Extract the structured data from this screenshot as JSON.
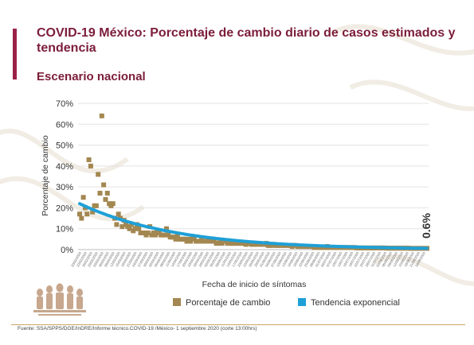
{
  "header": {
    "title": "COVID-19 México: Porcentaje de cambio diario de casos estimados y tendencia",
    "subtitle": "Escenario nacional"
  },
  "footer": {
    "source": "Fuente: SSA/SPPS/DGE/InDRE/Informe técnico.COVID-19 /México- 1 septiembre 2020 (corte 13:00hrs)"
  },
  "colors": {
    "title": "#7c1d3a",
    "accent_bar": "#9b2247",
    "scatter": "#a38750",
    "trend": "#1fa0d6"
  },
  "chart_data": {
    "type": "scatter",
    "xlabel": "Fecha de inicio de síntomas",
    "ylabel": "Porcentaje de cambio",
    "ylim": [
      0,
      70
    ],
    "yticks": [
      "0%",
      "10%",
      "20%",
      "30%",
      "40%",
      "50%",
      "60%",
      "70%"
    ],
    "grid": true,
    "legend_position": "bottom",
    "end_label": "0.6%",
    "x_tick_labels": [
      "20/02/2020",
      "23/02/2020",
      "26/02/2020",
      "29/02/2020",
      "03/03/2020",
      "06/03/2020",
      "09/03/2020",
      "12/03/2020",
      "15/03/2020",
      "18/03/2020",
      "21/03/2020",
      "24/03/2020",
      "27/03/2020",
      "30/03/2020",
      "02/04/2020",
      "05/04/2020",
      "08/04/2020",
      "11/04/2020",
      "14/04/2020",
      "17/04/2020",
      "20/04/2020",
      "23/04/2020",
      "26/04/2020",
      "29/04/2020",
      "02/05/2020",
      "05/05/2020",
      "08/05/2020",
      "11/05/2020",
      "14/05/2020",
      "17/05/2020",
      "20/05/2020",
      "23/05/2020",
      "26/05/2020",
      "29/05/2020",
      "01/06/2020",
      "04/06/2020",
      "07/06/2020",
      "10/06/2020",
      "13/06/2020",
      "16/06/2020",
      "19/06/2020",
      "22/06/2020",
      "25/06/2020",
      "28/06/2020",
      "01/07/2020",
      "04/07/2020",
      "07/07/2020",
      "10/07/2020",
      "13/07/2020",
      "16/07/2020",
      "19/07/2020",
      "22/07/2020",
      "25/07/2020",
      "28/07/2020",
      "31/07/2020",
      "03/08/2020",
      "06/08/2020",
      "09/08/2020",
      "12/08/2020",
      "15/08/2020",
      "18/08/2020",
      "21/08/2020",
      "24/08/2020"
    ],
    "series": [
      {
        "name": "Porcentaje de cambio",
        "kind": "scatter",
        "values": [
          17,
          15,
          25,
          20,
          17,
          43,
          40,
          18,
          21,
          21,
          36,
          27,
          64,
          31,
          24,
          27,
          22,
          21,
          22,
          15,
          12,
          17,
          15,
          11,
          14,
          12,
          11,
          10,
          12,
          9,
          10,
          12,
          10,
          8,
          8,
          8,
          7,
          8,
          11,
          7,
          8,
          7,
          9,
          8,
          7,
          7,
          7,
          10,
          7,
          6,
          6,
          6,
          5,
          7,
          5,
          5,
          5,
          5,
          4,
          5,
          4,
          6,
          5,
          4,
          4,
          4,
          5,
          4,
          4,
          4,
          5,
          4,
          4,
          4,
          3,
          3,
          4,
          3,
          4,
          4,
          3,
          3,
          3,
          3,
          3,
          3,
          3,
          3,
          3,
          3,
          2.5,
          3,
          3,
          2.5,
          2.5,
          2.5,
          2.5,
          3,
          2.5,
          2.5,
          2.5,
          3,
          2,
          2,
          2,
          2.5,
          2,
          2,
          2,
          2,
          2,
          2,
          2,
          2,
          2,
          1.5,
          2,
          2,
          1.5,
          1.5,
          1.5,
          1.5,
          1.5,
          1.5,
          1.5,
          1.5,
          1.5,
          1,
          1.5,
          1,
          1,
          1,
          1,
          1,
          1.5,
          1,
          1,
          1,
          1,
          1,
          1,
          1,
          1,
          1,
          1,
          1,
          1,
          1,
          1,
          1,
          0.8,
          0.8,
          0.8,
          0.8,
          0.8,
          0.8,
          0.8,
          0.8,
          0.8,
          0.8,
          0.8,
          0.8,
          0.8,
          0.8,
          0.8,
          0.8,
          0.7,
          0.7,
          0.7,
          0.7,
          0.7,
          0.7,
          0.7,
          0.7,
          0.7,
          0.7,
          0.7,
          0.7,
          0.7,
          0.6,
          0.6,
          0.6,
          0.6,
          0.6,
          0.6,
          0.6,
          0.6,
          0.6,
          0.6
        ]
      },
      {
        "name": "Tendencia exponencial",
        "kind": "line",
        "start": 22,
        "end": 0.6
      }
    ]
  }
}
